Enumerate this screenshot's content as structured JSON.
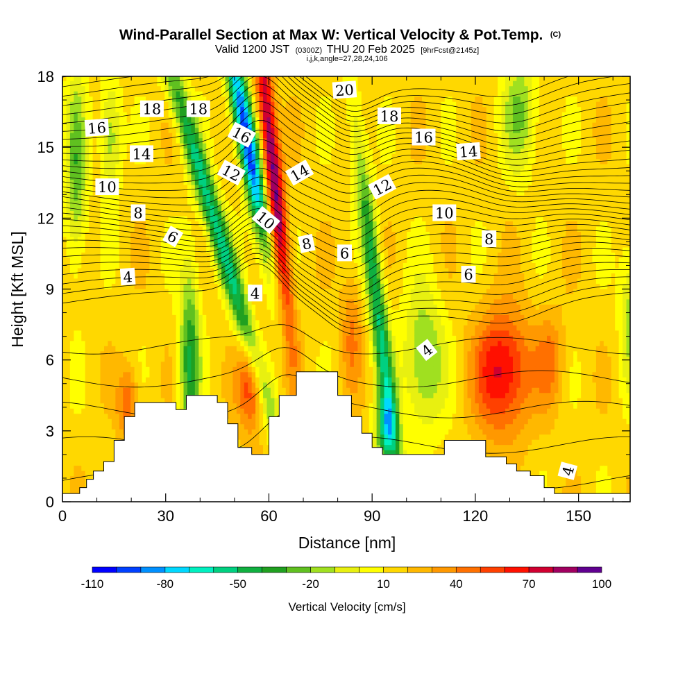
{
  "chart_data": {
    "type": "heatmap",
    "title": "Wind-Parallel Section at Max W: Vertical Velocity & Pot.Temp.",
    "title_mark": "(C)",
    "subtitle_main": "Valid 1200 JST",
    "subtitle_utc": "(0300Z)",
    "subtitle_date": "THU 20 Feb 2025",
    "subtitle_fcst": "[9hrFcst@2145z]",
    "info_line": "i,j,k,angle=27,28,24,106",
    "xlabel": "Distance [nm]",
    "ylabel": "Height [Kft MSL]",
    "xlim": [
      0,
      165
    ],
    "ylim": [
      0,
      18
    ],
    "xticks": [
      0,
      30,
      60,
      90,
      120,
      150
    ],
    "yticks": [
      0,
      3,
      6,
      9,
      12,
      15,
      18
    ],
    "colorbar": {
      "title": "Vertical Velocity [cm/s]",
      "min": -110,
      "max": 100,
      "step": 10,
      "tick_labels": [
        "-110",
        "-80",
        "-50",
        "-20",
        "10",
        "40",
        "70",
        "100"
      ],
      "tick_values": [
        -110,
        -80,
        -50,
        -20,
        10,
        40,
        70,
        100
      ],
      "colors": [
        "#0000ff",
        "#0040ff",
        "#0090ff",
        "#00d8ff",
        "#00f0c0",
        "#00d080",
        "#10b040",
        "#20a020",
        "#60c020",
        "#a0e020",
        "#e8f010",
        "#ffff00",
        "#ffd800",
        "#ffb800",
        "#ff9800",
        "#ff7000",
        "#ff4000",
        "#ff1000",
        "#d00030",
        "#a00060",
        "#600090"
      ]
    },
    "terrain": [
      [
        0,
        0.35
      ],
      [
        5,
        0.6
      ],
      [
        7,
        0.95
      ],
      [
        9,
        1.3
      ],
      [
        12,
        1.7
      ],
      [
        15,
        2.6
      ],
      [
        18,
        3.6
      ],
      [
        21,
        4.2
      ],
      [
        30,
        4.2
      ],
      [
        33,
        3.9
      ],
      [
        36,
        4.5
      ],
      [
        42,
        4.5
      ],
      [
        45,
        4.2
      ],
      [
        48,
        3.3
      ],
      [
        51,
        2.3
      ],
      [
        55,
        2.0
      ],
      [
        60,
        3.6
      ],
      [
        63,
        4.5
      ],
      [
        68,
        5.5
      ],
      [
        77,
        5.5
      ],
      [
        80,
        4.5
      ],
      [
        84,
        3.6
      ],
      [
        87,
        2.9
      ],
      [
        90,
        2.3
      ],
      [
        93,
        2.0
      ],
      [
        96,
        2.0
      ],
      [
        108,
        2.0
      ],
      [
        111,
        2.6
      ],
      [
        120,
        2.6
      ],
      [
        123,
        1.9
      ],
      [
        129,
        1.6
      ],
      [
        132,
        1.3
      ],
      [
        136,
        1.1
      ],
      [
        140,
        0.6
      ],
      [
        143,
        0.35
      ],
      [
        160,
        0.35
      ],
      [
        166,
        0.7
      ],
      [
        172,
        0.35
      ],
      [
        178,
        0.35
      ]
    ],
    "contour_labels": [
      {
        "text": "20",
        "x": 82,
        "y": 17.4,
        "rot": -4
      },
      {
        "text": "18",
        "x": 26,
        "y": 16.6,
        "rot": 0
      },
      {
        "text": "18",
        "x": 39.5,
        "y": 16.6,
        "rot": 0
      },
      {
        "text": "18",
        "x": 95,
        "y": 16.3,
        "rot": 0
      },
      {
        "text": "16",
        "x": 10,
        "y": 15.8,
        "rot": -4
      },
      {
        "text": "16",
        "x": 52,
        "y": 15.5,
        "rot": 28
      },
      {
        "text": "16",
        "x": 105,
        "y": 15.4,
        "rot": 0
      },
      {
        "text": "14",
        "x": 23,
        "y": 14.7,
        "rot": 0
      },
      {
        "text": "14",
        "x": 118,
        "y": 14.8,
        "rot": -4
      },
      {
        "text": "14",
        "x": 69,
        "y": 13.9,
        "rot": -30
      },
      {
        "text": "12",
        "x": 49,
        "y": 13.9,
        "rot": 28
      },
      {
        "text": "12",
        "x": 93,
        "y": 13.3,
        "rot": -28
      },
      {
        "text": "10",
        "x": 13,
        "y": 13.3,
        "rot": 0
      },
      {
        "text": "10",
        "x": 111,
        "y": 12.2,
        "rot": 0
      },
      {
        "text": "10",
        "x": 59,
        "y": 11.9,
        "rot": 40
      },
      {
        "text": "8",
        "x": 22,
        "y": 12.2,
        "rot": 0
      },
      {
        "text": "8",
        "x": 124,
        "y": 11.1,
        "rot": 0
      },
      {
        "text": "8",
        "x": 71,
        "y": 10.9,
        "rot": -12
      },
      {
        "text": "6",
        "x": 32,
        "y": 11.2,
        "rot": 30
      },
      {
        "text": "6",
        "x": 82,
        "y": 10.5,
        "rot": 0
      },
      {
        "text": "6",
        "x": 118,
        "y": 9.6,
        "rot": 0
      },
      {
        "text": "4",
        "x": 19,
        "y": 9.5,
        "rot": -4
      },
      {
        "text": "4",
        "x": 56,
        "y": 8.8,
        "rot": 0
      },
      {
        "text": "4",
        "x": 106,
        "y": 6.4,
        "rot": -38
      },
      {
        "text": "4",
        "x": 147,
        "y": 1.3,
        "rot": -75
      }
    ]
  }
}
